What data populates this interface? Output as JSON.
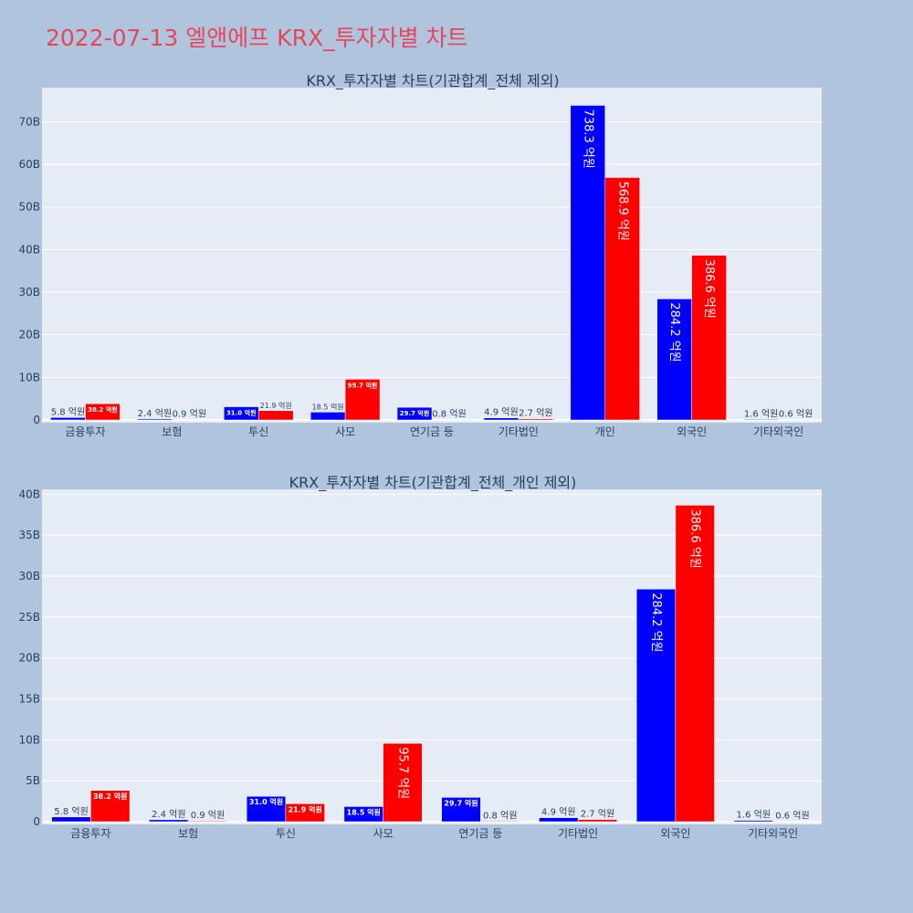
{
  "page_title": "2022-07-13 엘앤에프 KRX_투자자별 차트",
  "colors": {
    "buy": "#0000ff",
    "sell": "#ff0000",
    "plot_bg": "#e5ecf6",
    "page_bg": "#b0c4de",
    "title": "#e5485a"
  },
  "chart_data": [
    {
      "type": "bar",
      "title": "KRX_투자자별 차트(기관합계_전체 제외)",
      "categories": [
        "금융투자",
        "보험",
        "투신",
        "사모",
        "연기금 등",
        "기타법인",
        "개인",
        "외국인",
        "기타외국인"
      ],
      "series": [
        {
          "values": [
            0.58,
            0.24,
            3.1,
            1.85,
            2.97,
            0.49,
            73.83,
            28.42,
            0.16
          ],
          "labels": [
            "5.8 억원",
            "2.4 억원",
            "31.0 억원",
            "18.5 억원",
            "29.7 억원",
            "4.9 억원",
            "738.3 억원",
            "284.2 억원",
            "1.6 억원"
          ]
        },
        {
          "values": [
            3.82,
            0.09,
            2.19,
            9.57,
            0.08,
            0.27,
            56.89,
            38.66,
            0.06
          ],
          "labels": [
            "38.2 억원",
            "0.9 억원",
            "21.9 억원",
            "95.7 억원",
            "0.8 억원",
            "2.7 억원",
            "568.9 억원",
            "386.6 억원",
            "0.6 억원"
          ]
        }
      ],
      "yticks": [
        "0",
        "10B",
        "20B",
        "30B",
        "40B",
        "50B",
        "60B",
        "70B"
      ],
      "ylim": [
        0,
        78
      ],
      "grid": true
    },
    {
      "type": "bar",
      "title": "KRX_투자자별 차트(기관합계_전체_개인 제외)",
      "categories": [
        "금융투자",
        "보험",
        "투신",
        "사모",
        "연기금 등",
        "기타법인",
        "외국인",
        "기타외국인"
      ],
      "series": [
        {
          "values": [
            0.58,
            0.24,
            3.1,
            1.85,
            2.97,
            0.49,
            28.42,
            0.16
          ],
          "labels": [
            "5.8 억원",
            "2.4 억원",
            "31.0 억원",
            "18.5 억원",
            "29.7 억원",
            "4.9 억원",
            "284.2 억원",
            "1.6 억원"
          ]
        },
        {
          "values": [
            3.82,
            0.09,
            2.19,
            9.57,
            0.08,
            0.27,
            38.66,
            0.06
          ],
          "labels": [
            "38.2 억원",
            "0.9 억원",
            "21.9 억원",
            "95.7 억원",
            "0.8 억원",
            "2.7 억원",
            "386.6 억원",
            "0.6 억원"
          ]
        }
      ],
      "yticks": [
        "0",
        "5B",
        "10B",
        "15B",
        "20B",
        "25B",
        "30B",
        "35B",
        "40B"
      ],
      "ylim": [
        0,
        40.6
      ],
      "grid": true
    }
  ]
}
